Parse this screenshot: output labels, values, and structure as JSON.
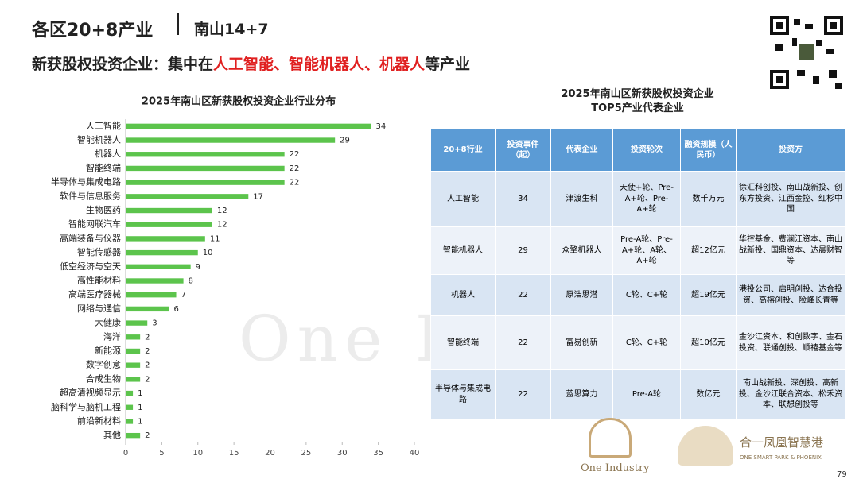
{
  "header": {
    "title": "各区20+8产业",
    "subtitle": "南山14+7",
    "headline": [
      "新获股权投资企业：集中在",
      "人工智能、智能机器人、机器人",
      "等产业"
    ]
  },
  "chart_data": {
    "type": "bar",
    "orientation": "horizontal",
    "title": "2025年南山区新获股权投资企业行业分布",
    "categories": [
      "人工智能",
      "智能机器人",
      "机器人",
      "智能终端",
      "半导体与集成电路",
      "软件与信息服务",
      "生物医药",
      "智能网联汽车",
      "高端装备与仪器",
      "智能传感器",
      "低空经济与空天",
      "高性能材料",
      "高端医疗器械",
      "网络与通信",
      "大健康",
      "海洋",
      "新能源",
      "数字创意",
      "合成生物",
      "超高清视频显示",
      "脑科学与脑机工程",
      "前沿新材料",
      "其他"
    ],
    "values": [
      34,
      29,
      22,
      22,
      22,
      17,
      12,
      12,
      11,
      10,
      9,
      8,
      7,
      6,
      3,
      2,
      2,
      2,
      2,
      1,
      1,
      1,
      2
    ],
    "color": "#5cc44c",
    "xlim": [
      0,
      40
    ],
    "xticks": [
      0,
      5,
      10,
      15,
      20,
      25,
      30,
      35,
      40
    ]
  },
  "table": {
    "title": [
      "2025年南山区新获股权投资企业",
      "TOP5产业代表企业"
    ],
    "header": [
      "20+8行业",
      "投资事件（起）",
      "代表企业",
      "投资轮次",
      "融资规模（人民币）",
      "投资方"
    ],
    "rows": [
      [
        "人工智能",
        34,
        "津渡生科",
        "天使+轮、Pre-A+轮、Pre-A+轮",
        "数千万元",
        "徐汇科创投、南山战新投、创东方投资、江西金控、红杉中国"
      ],
      [
        "智能机器人",
        29,
        "众擎机器人",
        "Pre-A轮、Pre-A+轮、A轮、A+轮",
        "超12亿元",
        "华控基金、费澜江资本、南山战新投、国鼎资本、达晨财智等"
      ],
      [
        "机器人",
        22,
        "原浩思潜",
        "C轮、C+轮",
        "超19亿元",
        "港投公司、启明创投、达合投资、高榕创投、险峰长青等"
      ],
      [
        "智能终端",
        22,
        "富易创新",
        "C轮、C+轮",
        "超10亿元",
        "金沙江资本、和创数字、金石投资、联通创投、顺禧基金等"
      ],
      [
        "半导体与集成电路",
        22,
        "蓝思算力",
        "Pre-A轮",
        "数亿元",
        "南山战新投、深创投、高新投、金沙江联合资本、松禾资本、联想创投等"
      ]
    ]
  },
  "watermark": "One Industry",
  "footer": {
    "brand": "One Industry",
    "partner": "合一凤凰智慧港",
    "partner_sub": "ONE SMART PARK & PHOENIX",
    "page": "79"
  }
}
